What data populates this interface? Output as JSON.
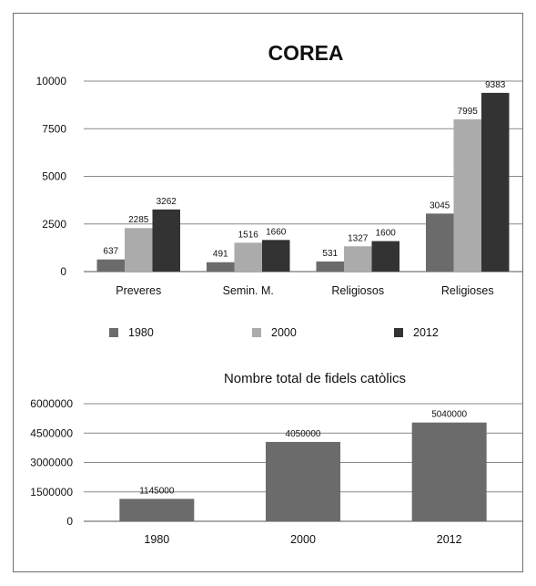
{
  "chart_data": [
    {
      "type": "bar",
      "title": "COREA",
      "categories": [
        "Preveres",
        "Semin. M.",
        "Religiosos",
        "Religioses"
      ],
      "series": [
        {
          "name": "1980",
          "values": [
            637,
            491,
            531,
            3045
          ],
          "color": "#6b6b6b"
        },
        {
          "name": "2000",
          "values": [
            2285,
            1516,
            1327,
            7995
          ],
          "color": "#ababab"
        },
        {
          "name": "2012",
          "values": [
            3262,
            1660,
            1600,
            9383
          ],
          "color": "#333333"
        }
      ],
      "ylim": [
        0,
        10000
      ],
      "yticks": [
        "0",
        "2500",
        "5000",
        "7500",
        "10000"
      ],
      "grid": true,
      "legend_position": "bottom"
    },
    {
      "type": "bar",
      "title": "Nombre total de fidels catòlics",
      "categories": [
        "1980",
        "2000",
        "2012"
      ],
      "values": [
        1145000,
        4050000,
        5040000
      ],
      "data_labels": [
        "1145000",
        "4050000",
        "5040000"
      ],
      "color": "#6b6b6b",
      "ylim": [
        0,
        6000000
      ],
      "yticks": [
        "0",
        "1500000",
        "3000000",
        "4500000",
        "6000000"
      ],
      "grid": true
    }
  ]
}
